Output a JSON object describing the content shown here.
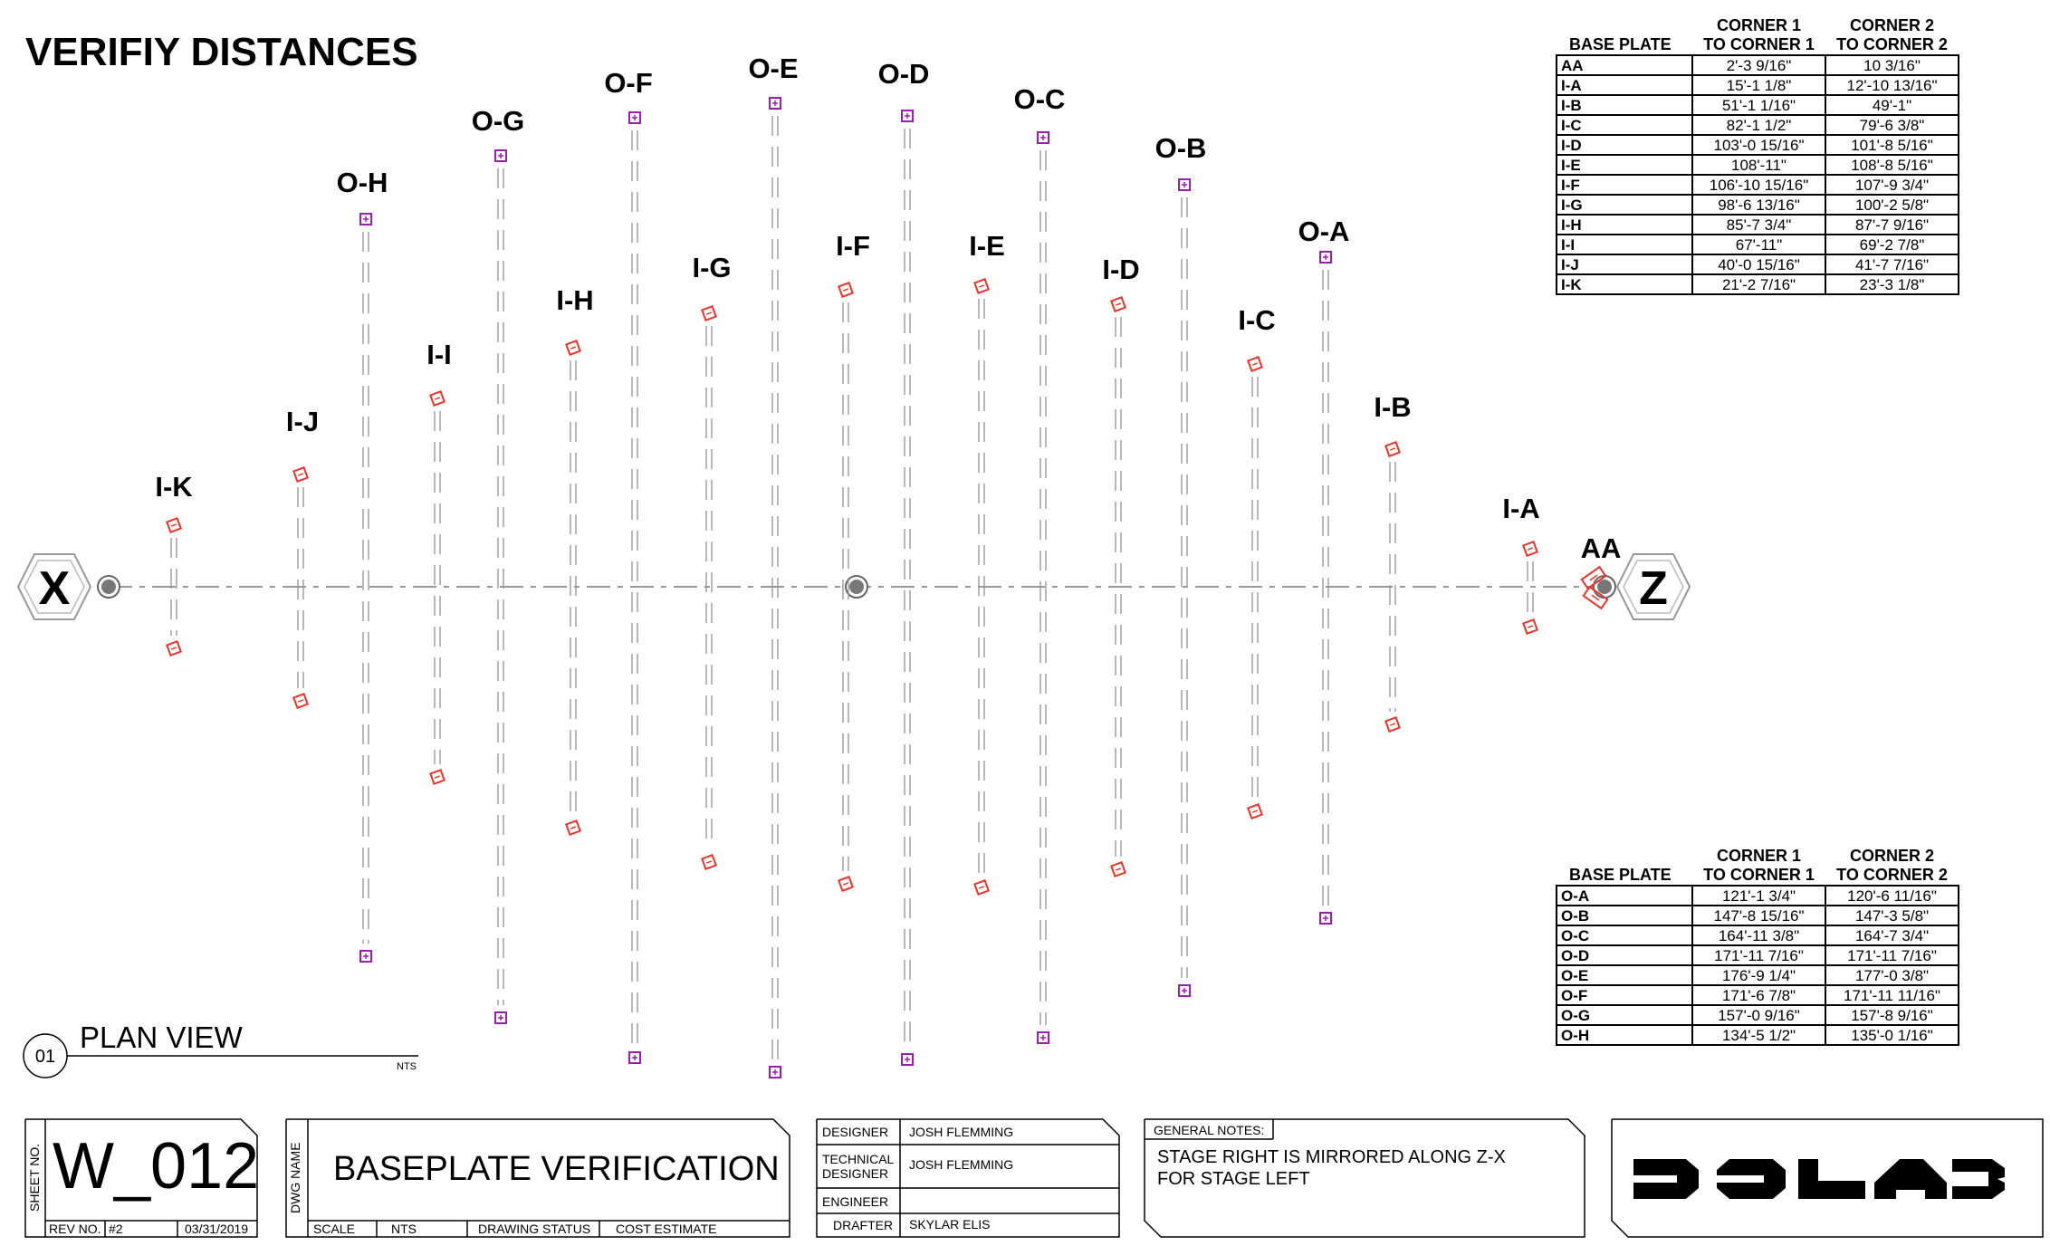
{
  "title": "VERIFIY DISTANCES",
  "plan": {
    "markers": {
      "left": "X",
      "right": "Z"
    },
    "view_number": "01",
    "view_title": "PLAN VIEW",
    "view_scale": "NTS",
    "inner_plates": [
      {
        "label": "I-K"
      },
      {
        "label": "I-J"
      },
      {
        "label": "I-I"
      },
      {
        "label": "I-H"
      },
      {
        "label": "I-G"
      },
      {
        "label": "I-F"
      },
      {
        "label": "I-E"
      },
      {
        "label": "I-D"
      },
      {
        "label": "I-C"
      },
      {
        "label": "I-B"
      },
      {
        "label": "I-A"
      }
    ],
    "outer_plates": [
      {
        "label": "O-H"
      },
      {
        "label": "O-G"
      },
      {
        "label": "O-F"
      },
      {
        "label": "O-E"
      },
      {
        "label": "O-D"
      },
      {
        "label": "O-C"
      },
      {
        "label": "O-B"
      },
      {
        "label": "O-A"
      }
    ],
    "aa_label": "AA",
    "colors": {
      "inner": "#e8352c",
      "outer": "#9a1fb0",
      "line": "#9a9a9a"
    }
  },
  "inner_table": {
    "headers": {
      "base_plate": "BASE PLATE",
      "c1_top": "CORNER 1",
      "c1_bottom": "TO CORNER 1",
      "c2_top": "CORNER 2",
      "c2_bottom": "TO CORNER 2"
    },
    "rows": [
      {
        "plate": "AA",
        "c1": "2'-3 9/16\"",
        "c2": "10 3/16\""
      },
      {
        "plate": "I-A",
        "c1": "15'-1 1/8\"",
        "c2": "12'-10 13/16\""
      },
      {
        "plate": "I-B",
        "c1": "51'-1 1/16\"",
        "c2": "49'-1\""
      },
      {
        "plate": "I-C",
        "c1": "82'-1 1/2\"",
        "c2": "79'-6 3/8\""
      },
      {
        "plate": "I-D",
        "c1": "103'-0 15/16\"",
        "c2": "101'-8 5/16\""
      },
      {
        "plate": "I-E",
        "c1": "108'-11\"",
        "c2": "108'-8 5/16\""
      },
      {
        "plate": "I-F",
        "c1": "106'-10 15/16\"",
        "c2": "107'-9 3/4\""
      },
      {
        "plate": "I-G",
        "c1": "98'-6 13/16\"",
        "c2": "100'-2 5/8\""
      },
      {
        "plate": "I-H",
        "c1": "85'-7 3/4\"",
        "c2": "87'-7 9/16\""
      },
      {
        "plate": "I-I",
        "c1": "67'-11\"",
        "c2": "69'-2 7/8\""
      },
      {
        "plate": "I-J",
        "c1": "40'-0 15/16\"",
        "c2": "41'-7 7/16\""
      },
      {
        "plate": "I-K",
        "c1": "21'-2 7/16\"",
        "c2": "23'-3 1/8\""
      }
    ]
  },
  "outer_table": {
    "headers": {
      "base_plate": "BASE PLATE",
      "c1_top": "CORNER 1",
      "c1_bottom": "TO CORNER 1",
      "c2_top": "CORNER 2",
      "c2_bottom": "TO CORNER 2"
    },
    "rows": [
      {
        "plate": "O-A",
        "c1": "121'-1 3/4\"",
        "c2": "120'-6 11/16\""
      },
      {
        "plate": "O-B",
        "c1": "147'-8 15/16\"",
        "c2": "147'-3 5/8\""
      },
      {
        "plate": "O-C",
        "c1": "164'-11 3/8\"",
        "c2": "164'-7 3/4\""
      },
      {
        "plate": "O-D",
        "c1": "171'-11 7/16\"",
        "c2": "171'-11 7/16\""
      },
      {
        "plate": "O-E",
        "c1": "176'-9 1/4\"",
        "c2": "177'-0 3/8\""
      },
      {
        "plate": "O-F",
        "c1": "171'-6 7/8\"",
        "c2": "171'-11 11/16\""
      },
      {
        "plate": "O-G",
        "c1": "157'-0 9/16\"",
        "c2": "157'-8 9/16\""
      },
      {
        "plate": "O-H",
        "c1": "134'-5 1/2\"",
        "c2": "135'-0 1/16\""
      }
    ]
  },
  "title_block": {
    "sheet_no_label": "SHEET NO.",
    "sheet_no": "W_012",
    "rev_label": "REV NO.",
    "rev": "#2",
    "date": "03/31/2019",
    "dwg_name_label": "DWG NAME",
    "dwg_name": "BASEPLATE VERIFICATION",
    "scale_label": "SCALE",
    "scale": "NTS",
    "drawing_status_label": "DRAWING STATUS",
    "cost_estimate_label": "COST ESTIMATE",
    "designer_label": "DESIGNER",
    "designer": "JOSH FLEMMING",
    "tech_designer_label_1": "TECHNICAL",
    "tech_designer_label_2": "DESIGNER",
    "tech_designer": "JOSH FLEMMING",
    "engineer_label": "ENGINEER",
    "engineer": "",
    "drafter_label": "DRAFTER",
    "drafter": "SKYLAR ELIS",
    "notes_label": "GENERAL NOTES:",
    "notes_line1": "STAGE RIGHT IS MIRRORED ALONG Z-X",
    "notes_line2": "FOR STAGE LEFT"
  }
}
